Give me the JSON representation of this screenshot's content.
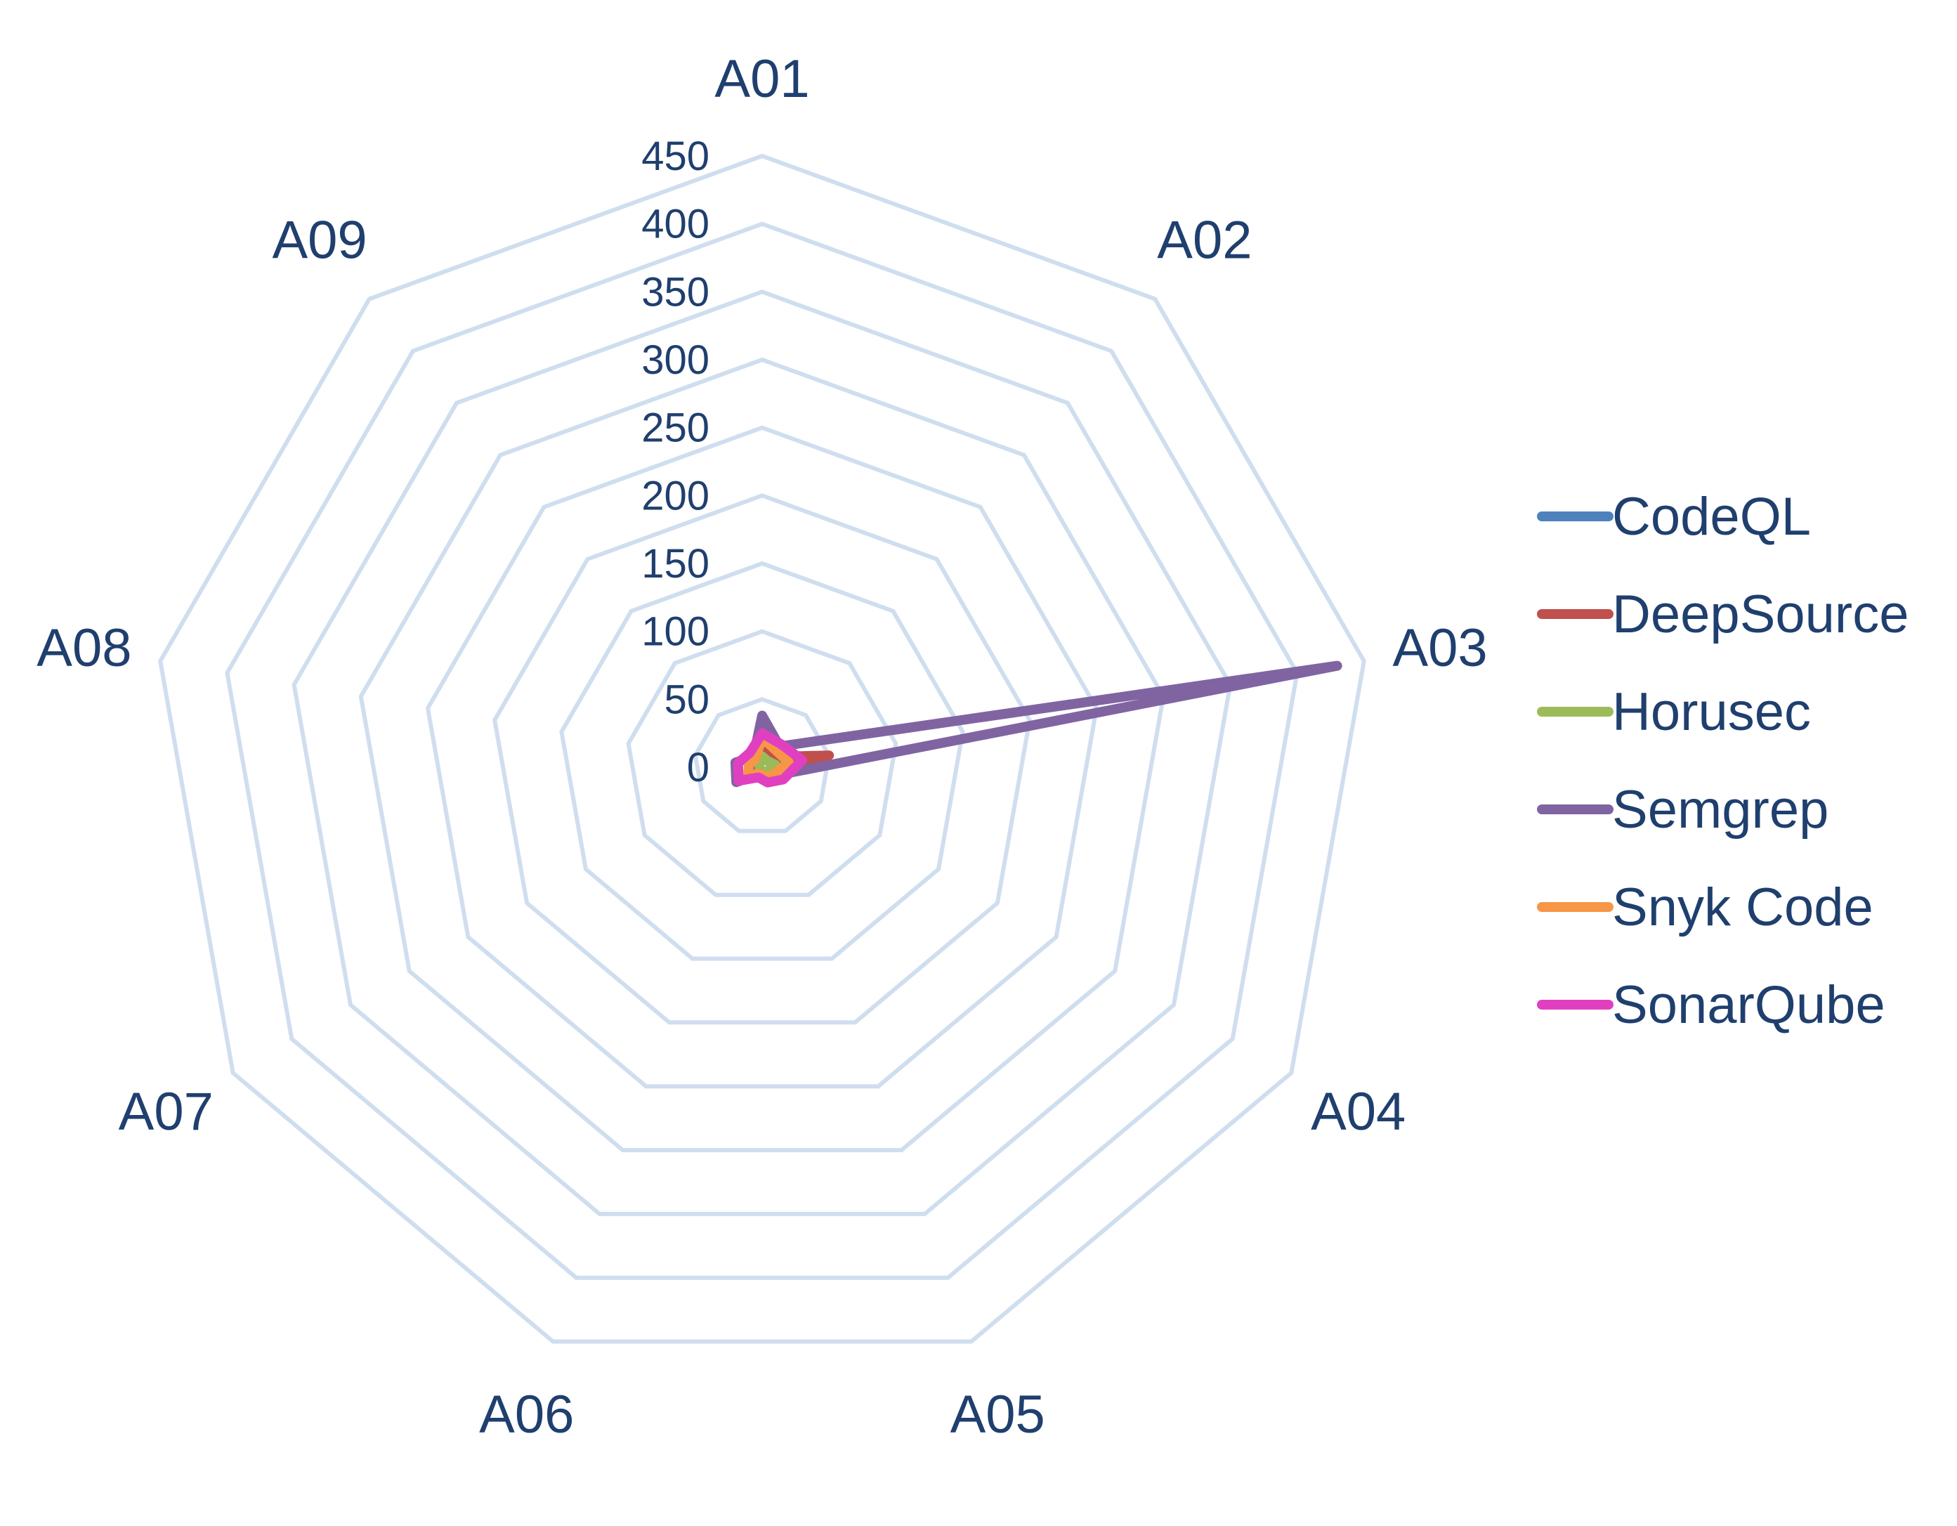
{
  "chart_data": {
    "type": "radar",
    "title": "",
    "categories": [
      "A01",
      "A02",
      "A03",
      "A04",
      "A05",
      "A06",
      "A07",
      "A08",
      "A09"
    ],
    "ticks": [
      "0",
      "50",
      "100",
      "150",
      "200",
      "250",
      "300",
      "350",
      "400",
      "450"
    ],
    "rlim": [
      0,
      450
    ],
    "grid": true,
    "legend_position": "right",
    "series": [
      {
        "name": "CodeQL",
        "color": "#4f81bd",
        "values": [
          10,
          8,
          15,
          6,
          8,
          5,
          4,
          4,
          6
        ]
      },
      {
        "name": "DeepSource",
        "color": "#c0504d",
        "values": [
          12,
          10,
          50,
          8,
          6,
          4,
          3,
          3,
          5
        ]
      },
      {
        "name": "Horusec",
        "color": "#9bbb59",
        "values": [
          8,
          6,
          10,
          5,
          4,
          3,
          2,
          2,
          3
        ]
      },
      {
        "name": "Semgrep",
        "color": "#8064a2",
        "values": [
          38,
          20,
          430,
          12,
          8,
          5,
          22,
          20,
          10
        ]
      },
      {
        "name": "Snyk Code",
        "color": "#f79646",
        "values": [
          22,
          16,
          20,
          10,
          8,
          5,
          12,
          10,
          8
        ]
      },
      {
        "name": "SonarQube",
        "color": "#e040c0",
        "values": [
          25,
          22,
          30,
          18,
          12,
          8,
          20,
          18,
          14
        ]
      }
    ]
  }
}
